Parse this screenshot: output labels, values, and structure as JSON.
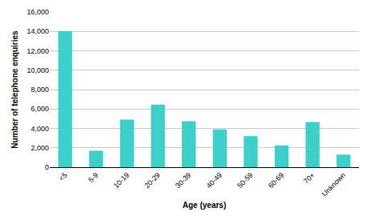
{
  "chart_data": {
    "type": "bar",
    "x_label": "Age (years)",
    "y_label": "Number of telephone enquiries",
    "categories": [
      "<5",
      "5-9",
      "10-19",
      "20-29",
      "30-39",
      "40-49",
      "50-59",
      "60-69",
      "70+",
      "Unknown"
    ],
    "values": [
      14050,
      1700,
      4900,
      6450,
      4750,
      3900,
      3200,
      2250,
      4650,
      1300
    ],
    "color": "#3dcfca",
    "ylim": [
      0,
      16000
    ],
    "yticks": [
      0,
      {
        "value": 2000,
        "label": "2,000"
      },
      {
        "value": 4000,
        "label": "4,000"
      },
      {
        "value": 6000,
        "label": "6,000"
      },
      {
        "value": 8000,
        "label": "8,000"
      },
      {
        "value": 10000,
        "label": "10,000"
      },
      {
        "value": 12000,
        "label": "12,000"
      },
      {
        "value": 14000,
        "label": "14,000"
      },
      {
        "value": 16000,
        "label": "16,000"
      }
    ],
    "grid": true
  }
}
